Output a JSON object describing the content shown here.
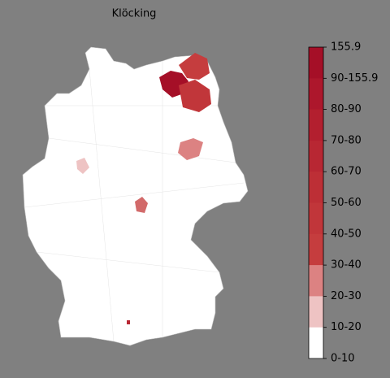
{
  "title": "Klöcking",
  "colorbar": {
    "labels": [
      "155.9",
      "90-155.9",
      "80-90",
      "70-80",
      "60-70",
      "50-60",
      "40-50",
      "30-40",
      "20-30",
      "10-20",
      "0-10"
    ],
    "colors": [
      "#a50f27",
      "#ad172c",
      "#b31f2f",
      "#b82733",
      "#bd2f36",
      "#c1363a",
      "#c53d3e",
      "#dc8282",
      "#eec3c3",
      "#ffffff"
    ]
  }
}
